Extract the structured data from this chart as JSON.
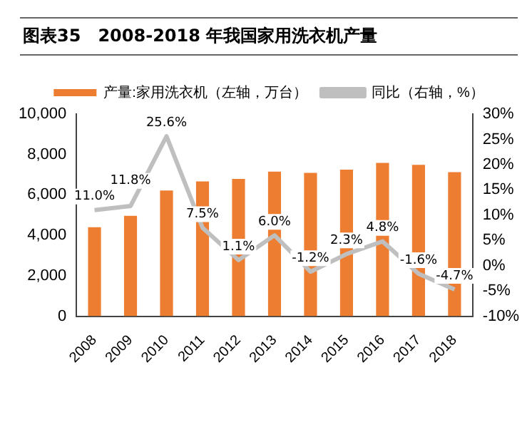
{
  "chart_data": {
    "type": "bar",
    "title": "图表35　2008-2018 年我国家用洗衣机产量",
    "categories": [
      "2008",
      "2009",
      "2010",
      "2011",
      "2012",
      "2013",
      "2014",
      "2015",
      "2016",
      "2017",
      "2018"
    ],
    "series": [
      {
        "name": "产量:家用洗衣机（左轴，万台）",
        "color": "#ed7d31",
        "values": [
          4400,
          4970,
          6220,
          6670,
          6790,
          7150,
          7090,
          7250,
          7580,
          7490,
          7130
        ]
      },
      {
        "name": "同比（右轴，%）",
        "type": "line",
        "axis": "y2",
        "color": "#bfbfbf",
        "values": [
          11.0,
          11.8,
          25.6,
          7.5,
          1.1,
          6.0,
          -1.2,
          2.3,
          4.8,
          -1.6,
          -4.7
        ],
        "value_labels": [
          "11.0%",
          "11.8%",
          "25.6%",
          "7.5%",
          "1.1%",
          "6.0%",
          "-1.2%",
          "2.3%",
          "4.8%",
          "-1.6%",
          "-4.7%"
        ]
      }
    ],
    "ylim": [
      0,
      10000
    ],
    "yticks": [
      {
        "value": 0,
        "label": "0"
      },
      {
        "value": 2000,
        "label": "2,000"
      },
      {
        "value": 4000,
        "label": "4,000"
      },
      {
        "value": 6000,
        "label": "6,000"
      },
      {
        "value": 8000,
        "label": "8,000"
      },
      {
        "value": 10000,
        "label": "10,000"
      }
    ],
    "y2lim": [
      -10,
      30
    ],
    "y2ticks": [
      {
        "value": -10,
        "label": "-10%"
      },
      {
        "value": -5,
        "label": "-5%"
      },
      {
        "value": 0,
        "label": "0%"
      },
      {
        "value": 5,
        "label": "5%"
      },
      {
        "value": 10,
        "label": "10%"
      },
      {
        "value": 15,
        "label": "15%"
      },
      {
        "value": 20,
        "label": "20%"
      },
      {
        "value": 25,
        "label": "25%"
      },
      {
        "value": 30,
        "label": "30%"
      }
    ],
    "grid": false,
    "legend": "top",
    "marker": "none"
  }
}
